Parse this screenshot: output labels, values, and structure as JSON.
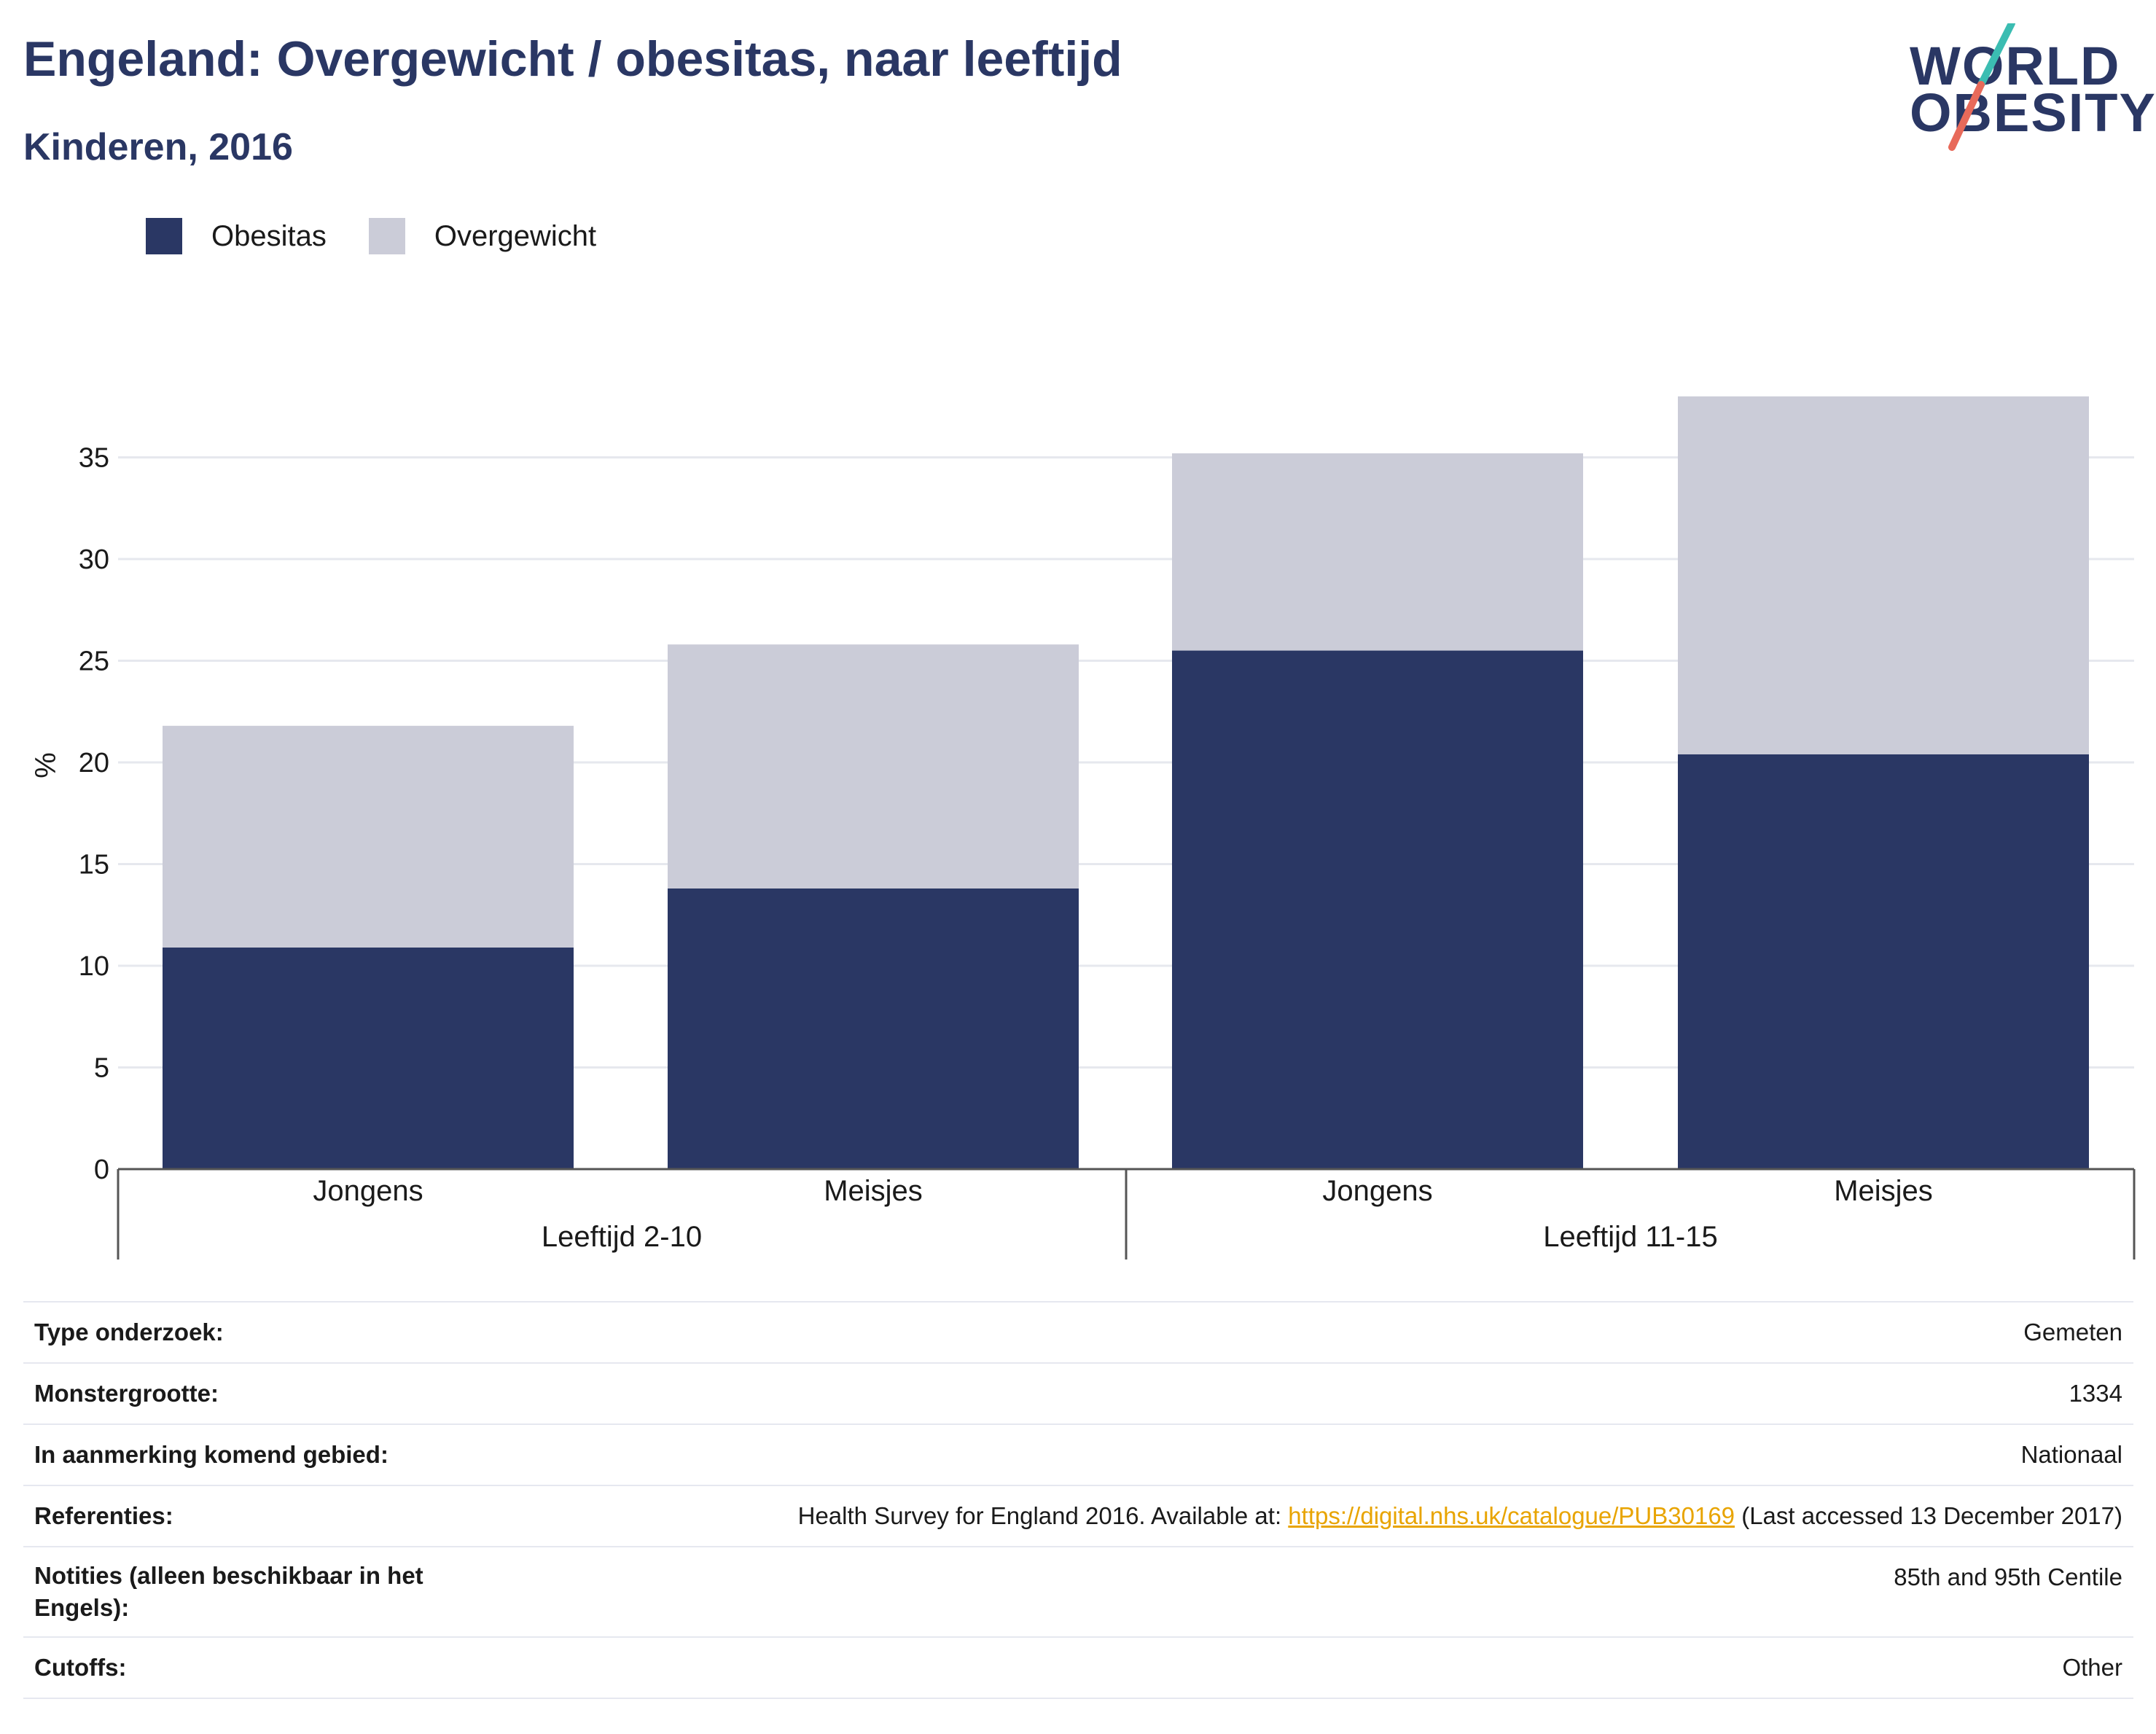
{
  "title": "Engeland: Overgewicht / obesitas, naar leeftijd",
  "subtitle": "Kinderen, 2016",
  "logo": {
    "line1": "WORLD",
    "line2": "OBESITY"
  },
  "colors": {
    "obesitas": "#2a3764",
    "overgewicht": "#cbccd8",
    "title": "#2a3764",
    "link": "#e8a400",
    "slash_teal": "#3bbdb2",
    "slash_coral": "#e86a5a"
  },
  "legend": [
    {
      "label": "Obesitas",
      "color": "#2a3764"
    },
    {
      "label": "Overgewicht",
      "color": "#cbccd8"
    }
  ],
  "chart_data": {
    "type": "bar",
    "stacked": true,
    "ylabel": "%",
    "ylim": [
      0,
      38
    ],
    "yticks": [
      0,
      5,
      10,
      15,
      20,
      25,
      30,
      35
    ],
    "grid": true,
    "legend_position": "top-left",
    "groups": [
      {
        "label": "Leeftijd 2-10",
        "categories": [
          "Jongens",
          "Meisjes"
        ]
      },
      {
        "label": "Leeftijd 11-15",
        "categories": [
          "Jongens",
          "Meisjes"
        ]
      }
    ],
    "categories": [
      "Jongens",
      "Meisjes",
      "Jongens",
      "Meisjes"
    ],
    "series": [
      {
        "name": "Obesitas",
        "values": [
          10.9,
          13.8,
          25.5,
          20.4
        ]
      },
      {
        "name": "Overgewicht",
        "values": [
          10.9,
          12.0,
          9.7,
          17.6
        ]
      }
    ]
  },
  "meta": [
    {
      "key": "Type onderzoek:",
      "value": "Gemeten"
    },
    {
      "key": "Monstergrootte:",
      "value": "1334"
    },
    {
      "key": "In aanmerking komend gebied:",
      "value": "Nationaal"
    },
    {
      "key": "Referenties:",
      "value_before": "Health Survey for England 2016. Available at: ",
      "link": "https://digital.nhs.uk/catalogue/PUB30169",
      "value_after": " (Last accessed 13 December 2017)"
    },
    {
      "key": "Notities (alleen beschikbaar in het Engels):",
      "value": "85th and 95th Centile"
    },
    {
      "key": "Cutoffs:",
      "value": "Other"
    }
  ]
}
